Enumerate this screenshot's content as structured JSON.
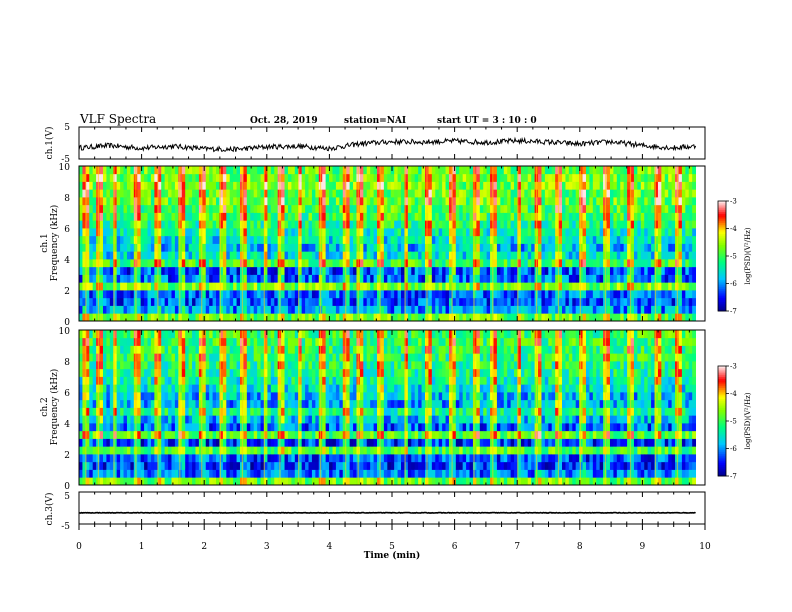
{
  "header": {
    "title": "VLF Spectra",
    "date": "Oct. 28, 2019",
    "station": "station=NAI",
    "start": "start  UT =   3  : 10 : 0"
  },
  "panels": {
    "ch1_volt": {
      "ylabel": "ch.1(V)",
      "ylim": [
        -5,
        5
      ],
      "ticks": [
        "5",
        "-5"
      ]
    },
    "ch1_spec": {
      "ylabel_1": "ch.1",
      "ylabel_2": "Frequency (kHz)",
      "ylim": [
        0,
        10
      ],
      "ticks": [
        "10",
        "8",
        "6",
        "4",
        "2",
        "0"
      ]
    },
    "ch2_spec": {
      "ylabel_1": "ch.2",
      "ylabel_2": "Frequency (kHz)",
      "ylim": [
        0,
        10
      ],
      "ticks": [
        "10",
        "8",
        "6",
        "4",
        "2",
        "0"
      ]
    },
    "ch3_volt": {
      "ylabel": "ch.3(V)",
      "ylim": [
        -5,
        5
      ],
      "ticks": [
        "5",
        "-5"
      ]
    }
  },
  "colorbar": {
    "label": "log(PSD)(V²/Hz)",
    "ticks": [
      "-3",
      "-4",
      "-5",
      "-6",
      "-7"
    ],
    "range": [
      -7,
      -3
    ],
    "colors": [
      "#000080",
      "#0000ff",
      "#00ffff",
      "#00ff00",
      "#ffff00",
      "#ff0000",
      "#ffffff"
    ]
  },
  "xaxis": {
    "label": "Time (min)",
    "ticks": [
      "0",
      "1",
      "2",
      "3",
      "4",
      "5",
      "6",
      "7",
      "8",
      "9",
      "10"
    ]
  },
  "chart_data": [
    {
      "type": "line",
      "ylabel": "ch.1(V)",
      "xlabel": "Time (min)",
      "xlim": [
        0,
        10
      ],
      "ylim": [
        -5,
        5
      ],
      "data_extent_min": 9.85,
      "series": [
        {
          "x": [
            0,
            0.5,
            1,
            1.5,
            2,
            2.5,
            3,
            3.5,
            4,
            4.5,
            5,
            5.5,
            6,
            6.5,
            7,
            7.5,
            8,
            8.5,
            9,
            9.5,
            9.85
          ],
          "y": [
            -1.5,
            -0.8,
            -1.6,
            -1.0,
            -1.8,
            -2.0,
            -1.2,
            -1.0,
            -1.7,
            -0.2,
            0.4,
            0.3,
            0.6,
            0.2,
            0.7,
            0.3,
            -0.3,
            0.4,
            -0.8,
            -1.5,
            -1.0
          ]
        }
      ]
    },
    {
      "type": "heatmap",
      "title": "ch.1",
      "ylabel": "Frequency (kHz)",
      "xlabel": "Time (min)",
      "xlim": [
        0,
        10
      ],
      "ylim": [
        0,
        10
      ],
      "data_extent_min": 9.85,
      "zlabel": "log(PSD)(V²/Hz)",
      "zlim": [
        -7,
        -3
      ],
      "freq_kHz": [
        0.25,
        0.75,
        1.25,
        1.75,
        2.25,
        2.75,
        3.25,
        3.75,
        4.25,
        4.75,
        5.25,
        5.75,
        6.25,
        6.75,
        7.25,
        7.75,
        8.25,
        8.75,
        9.25,
        9.75
      ],
      "typical_log_psd": [
        -4.8,
        -6.0,
        -6.3,
        -6.2,
        -4.7,
        -6.2,
        -6.3,
        -5.0,
        -5.6,
        -5.8,
        -5.6,
        -5.4,
        -5.2,
        -5.0,
        -4.9,
        -4.8,
        -4.8,
        -4.7,
        -4.7,
        -4.8
      ],
      "sferic_times_min": [
        0.1,
        0.3,
        0.55,
        0.9,
        1.25,
        1.6,
        1.95,
        2.25,
        2.6,
        2.95,
        3.2,
        3.5,
        3.85,
        4.25,
        4.45,
        4.8,
        5.2,
        5.55,
        5.95,
        6.3,
        6.6,
        7.0,
        7.3,
        7.65,
        8.0,
        8.4,
        8.8,
        9.2,
        9.55
      ]
    },
    {
      "type": "heatmap",
      "title": "ch.2",
      "ylabel": "Frequency (kHz)",
      "xlabel": "Time (min)",
      "xlim": [
        0,
        10
      ],
      "ylim": [
        0,
        10
      ],
      "data_extent_min": 9.85,
      "zlabel": "log(PSD)(V²/Hz)",
      "zlim": [
        -7,
        -3
      ],
      "freq_kHz": [
        0.25,
        0.75,
        1.25,
        1.75,
        2.25,
        2.75,
        3.25,
        3.75,
        4.25,
        4.75,
        5.25,
        5.75,
        6.25,
        6.75,
        7.25,
        7.75,
        8.25,
        8.75,
        9.25,
        9.75
      ],
      "typical_log_psd": [
        -4.8,
        -6.1,
        -6.4,
        -6.3,
        -4.9,
        -6.4,
        -4.9,
        -6.2,
        -5.8,
        -5.3,
        -5.9,
        -5.8,
        -5.6,
        -5.4,
        -5.3,
        -5.2,
        -5.1,
        -5.1,
        -5.0,
        -5.0
      ],
      "sferic_times_min": [
        0.1,
        0.3,
        0.55,
        0.9,
        1.25,
        1.6,
        1.95,
        2.25,
        2.6,
        2.95,
        3.2,
        3.5,
        3.85,
        4.25,
        4.45,
        4.8,
        5.2,
        5.55,
        5.95,
        6.3,
        6.6,
        7.0,
        7.3,
        7.65,
        8.0,
        8.4,
        8.8,
        9.2,
        9.55
      ]
    },
    {
      "type": "line",
      "ylabel": "ch.3(V)",
      "xlabel": "Time (min)",
      "xlim": [
        0,
        10
      ],
      "ylim": [
        -5,
        5
      ],
      "data_extent_min": 9.85,
      "series": [
        {
          "x": [
            0,
            9.85
          ],
          "y": [
            -1.5,
            -1.5
          ]
        }
      ]
    }
  ]
}
